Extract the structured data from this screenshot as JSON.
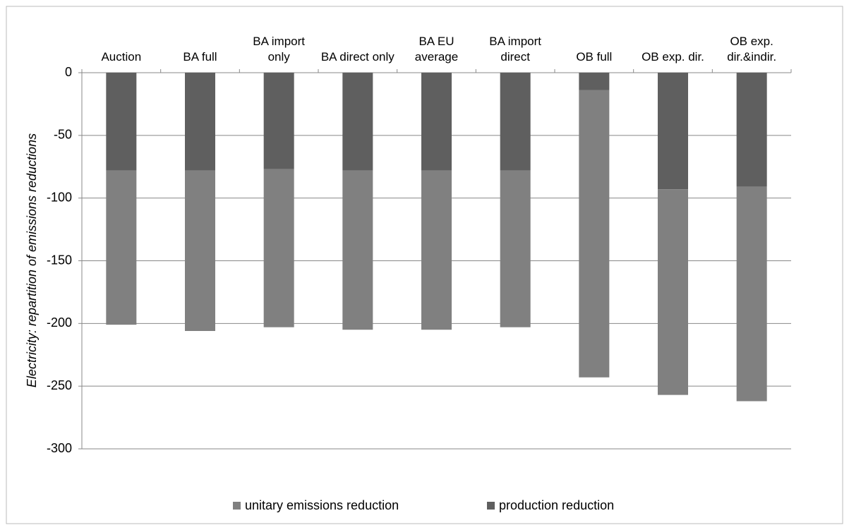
{
  "chart_data": {
    "type": "stacked_bar",
    "y_label": "Electricity: repartition of emissions reductions",
    "categories": [
      "Auction",
      "BA full",
      "BA import only",
      "BA direct only",
      "BA EU average",
      "BA import direct",
      "OB full",
      "OB exp. dir.",
      "OB exp. dir.&indir."
    ],
    "series": [
      {
        "name": "unitary emissions reduction",
        "color": "#808080",
        "values": [
          -123,
          -128,
          -126,
          -127,
          -127,
          -125,
          -229,
          -164,
          -171
        ]
      },
      {
        "name": "production reduction",
        "color": "#5f5f5f",
        "values": [
          -78,
          -78,
          -77,
          -78,
          -78,
          -78,
          -14,
          -93,
          -91
        ]
      }
    ],
    "ylim": [
      -300,
      0
    ],
    "yticks": [
      0,
      -50,
      -100,
      -150,
      -200,
      -250,
      -300
    ],
    "grid": true,
    "legend": "bottom"
  }
}
